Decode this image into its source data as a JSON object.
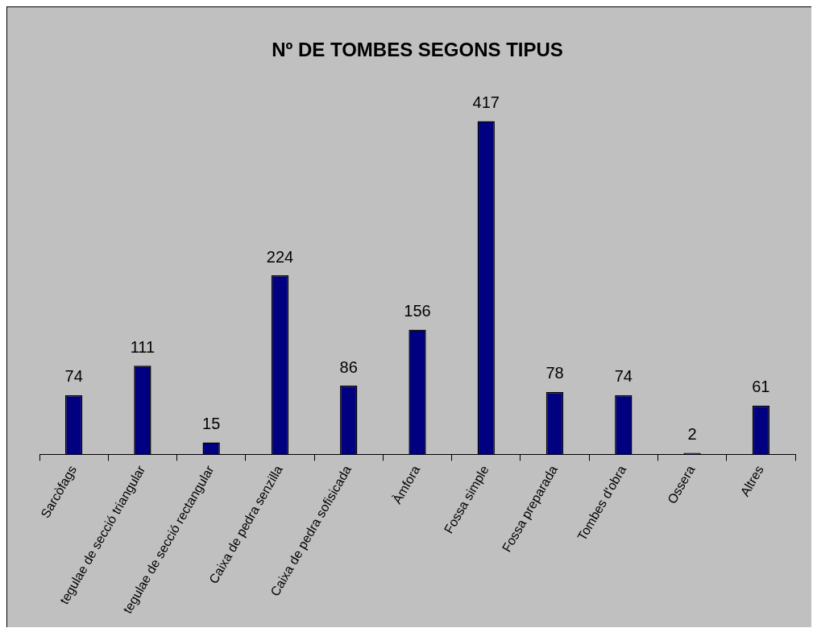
{
  "chart_data": {
    "type": "bar",
    "title": "Nº DE TOMBES SEGONS TIPUS",
    "categories": [
      "Sarcòfags",
      "tegulae de secció triangular",
      "tegulae de secció rectangular",
      "Caixa de pedra senzilla",
      "Caixa de pedra sofisicada",
      "Àmfora",
      "Fossa simple",
      "Fossa preparada",
      "Tombes d'obra",
      "Ossera",
      "Altres"
    ],
    "values": [
      74,
      111,
      15,
      224,
      86,
      156,
      417,
      78,
      74,
      2,
      61
    ],
    "color": "#000080",
    "data_labels": true,
    "grid": false,
    "legend": false
  }
}
